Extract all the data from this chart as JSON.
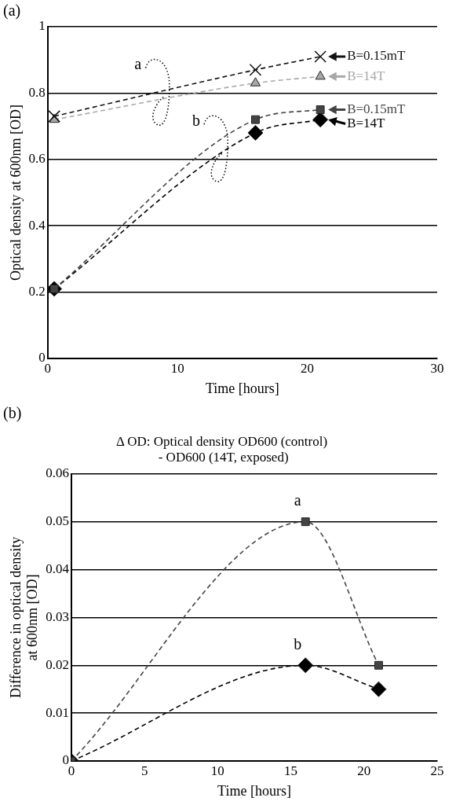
{
  "chart_data": [
    {
      "type": "line",
      "xlabel": "Time [hours]",
      "ylabel": "Optical density at 600nm [OD]",
      "xlim": [
        0,
        30
      ],
      "xticks": [
        0,
        10,
        20,
        30
      ],
      "ylim": [
        0,
        1
      ],
      "yticks": [
        0,
        0.2,
        0.4,
        0.6,
        0.8,
        1
      ],
      "grid": "y",
      "legend": "right",
      "annotations": [
        "(a)",
        {
          "text": "a",
          "x": 9,
          "y": 0.79
        },
        {
          "text": "b",
          "x": 13.5,
          "y": 0.62
        }
      ],
      "series": [
        {
          "name": "B=0.15mT",
          "color": "#111111",
          "marker": "cross",
          "line_style": "dashed",
          "x": [
            0.5,
            16,
            21
          ],
          "values": [
            0.73,
            0.87,
            0.91
          ]
        },
        {
          "name": "B=14T",
          "color": "#a8a8a8",
          "marker": "triangle",
          "line_style": "dashed",
          "x": [
            0.5,
            16,
            21
          ],
          "values": [
            0.72,
            0.83,
            0.85
          ]
        },
        {
          "name": "B=0.15mT",
          "color": "#444444",
          "marker": "square",
          "line_style": "dashed",
          "x": [
            0.5,
            16,
            21
          ],
          "values": [
            0.21,
            0.72,
            0.75
          ]
        },
        {
          "name": "B=14T",
          "color": "#000000",
          "marker": "diamond",
          "line_style": "dashed",
          "x": [
            0.5,
            16,
            21
          ],
          "values": [
            0.21,
            0.68,
            0.72
          ]
        }
      ]
    },
    {
      "type": "line",
      "title": "Δ OD: Optical density OD600 (control)\n - OD600 (14T, exposed)",
      "xlabel": "Time [hours]",
      "ylabel": "Difference in optical density\nat 600nm [OD]",
      "xlim": [
        0,
        25
      ],
      "xticks": [
        0,
        5,
        10,
        15,
        20,
        25
      ],
      "ylim": [
        0,
        0.06
      ],
      "yticks": [
        0,
        0.01,
        0.02,
        0.03,
        0.04,
        0.05,
        0.06
      ],
      "grid": "y",
      "annotations": [
        "(b)",
        {
          "text": "a",
          "x": 16,
          "y": 0.05
        },
        {
          "text": "b",
          "x": 16,
          "y": 0.02
        }
      ],
      "series": [
        {
          "color": "#444444",
          "marker": "square",
          "line_style": "dashed",
          "x": [
            0,
            16,
            21
          ],
          "values": [
            0,
            0.05,
            0.02
          ]
        },
        {
          "color": "#000000",
          "marker": "diamond",
          "line_style": "dashed",
          "x": [
            0,
            16,
            21
          ],
          "values": [
            0,
            0.02,
            0.015
          ]
        }
      ]
    }
  ]
}
